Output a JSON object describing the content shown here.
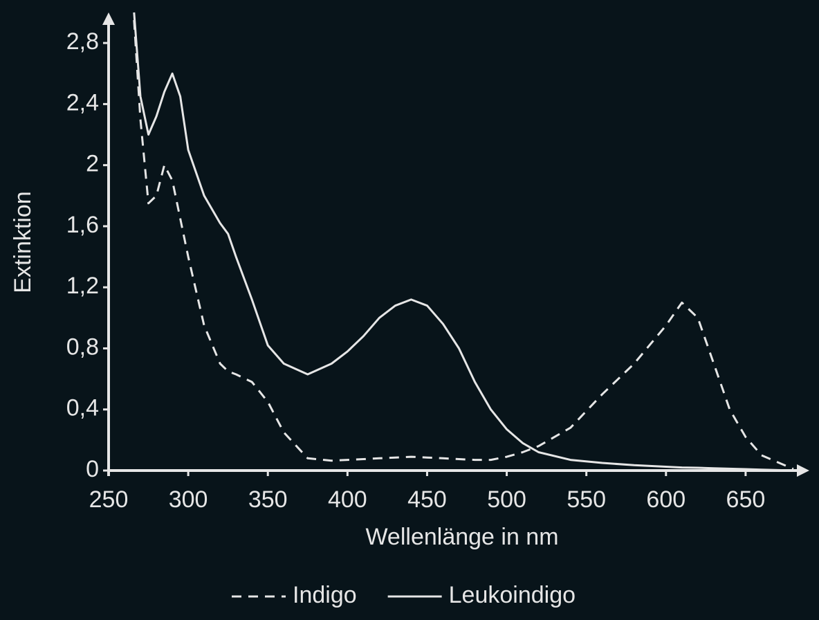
{
  "chart_data": {
    "type": "line",
    "x_label": "Wellenlänge in nm",
    "y_label": "Extinktion",
    "x": [
      266,
      270,
      275,
      280,
      285,
      290,
      295,
      300,
      310,
      320,
      325,
      330,
      340,
      350,
      360,
      375,
      390,
      400,
      410,
      420,
      430,
      440,
      450,
      460,
      470,
      480,
      490,
      500,
      510,
      520,
      540,
      560,
      580,
      600,
      610,
      620,
      630,
      640,
      650,
      660,
      680
    ],
    "series": [
      {
        "name": "Indigo",
        "color": "#e6e6e6",
        "dash": true,
        "values": [
          2.95,
          2.3,
          1.75,
          1.8,
          2.0,
          1.9,
          1.65,
          1.4,
          0.95,
          0.7,
          0.65,
          0.63,
          0.58,
          0.45,
          0.25,
          0.08,
          0.065,
          0.07,
          0.075,
          0.08,
          0.085,
          0.09,
          0.085,
          0.08,
          0.075,
          0.07,
          0.07,
          0.09,
          0.12,
          0.16,
          0.28,
          0.5,
          0.7,
          0.95,
          1.1,
          1.0,
          0.7,
          0.4,
          0.22,
          0.1,
          0.01
        ]
      },
      {
        "name": "Leukoindigo",
        "color": "#e6e6e6",
        "dash": false,
        "values": [
          3.0,
          2.45,
          2.2,
          2.32,
          2.48,
          2.6,
          2.45,
          2.1,
          1.8,
          1.62,
          1.55,
          1.4,
          1.12,
          0.82,
          0.7,
          0.63,
          0.7,
          0.78,
          0.88,
          1.0,
          1.08,
          1.12,
          1.08,
          0.96,
          0.8,
          0.58,
          0.4,
          0.27,
          0.18,
          0.12,
          0.07,
          0.05,
          0.035,
          0.025,
          0.02,
          0.018,
          0.015,
          0.012,
          0.009,
          0.006,
          0
        ]
      }
    ],
    "xlim": [
      250,
      690
    ],
    "ylim": [
      0,
      3.0
    ],
    "xticks": [
      250,
      300,
      350,
      400,
      450,
      500,
      550,
      600,
      650
    ],
    "yticks": [
      0,
      {
        "value": 0.4,
        "label": "0,4"
      },
      {
        "value": 0.8,
        "label": "0,8"
      },
      {
        "value": 1.2,
        "label": "1,2"
      },
      {
        "value": 1.6,
        "label": "1,6"
      },
      2,
      {
        "value": 2.4,
        "label": "2,4"
      },
      {
        "value": 2.8,
        "label": "2,8"
      }
    ],
    "grid": false,
    "legend": "bottom"
  }
}
